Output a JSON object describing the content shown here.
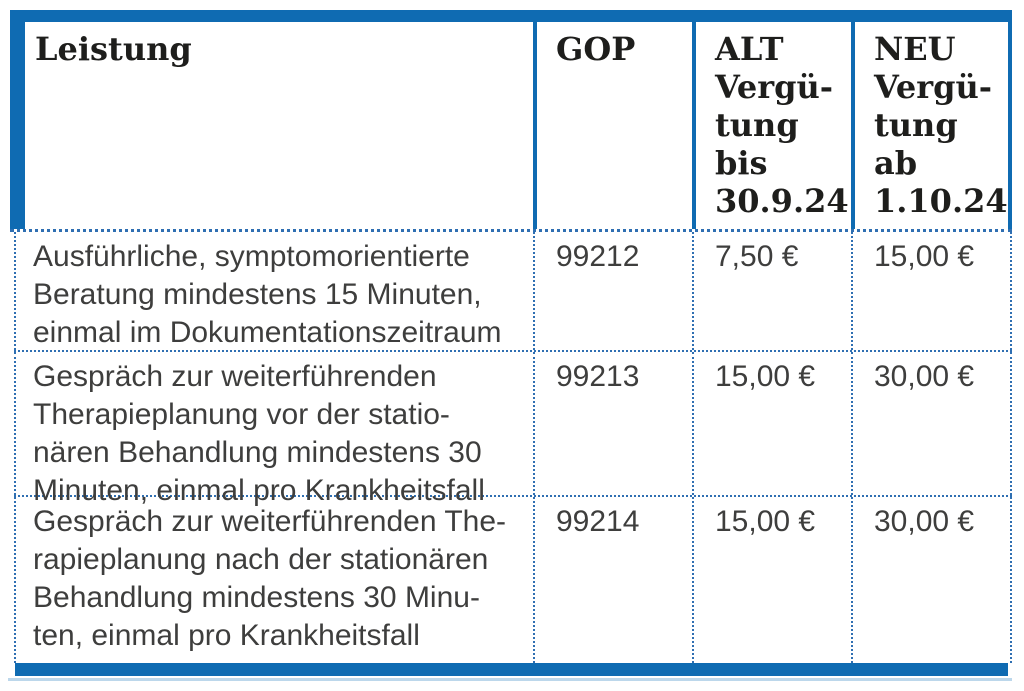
{
  "table": {
    "columns": [
      {
        "label": "Leistung"
      },
      {
        "label": "GOP"
      },
      {
        "label": "ALT\nVergü-\ntung\nbis\n30.9.24"
      },
      {
        "label": "NEU\nVergü-\ntung\nab\n1.10.24"
      }
    ],
    "rows": [
      {
        "leistung": "Ausführliche, symptomorientierte\nBeratung mindestens 15 Minuten,\neinmal im Dokumentationszeitraum",
        "gop": "99212",
        "alt": "7,50 €",
        "neu": "15,00 €"
      },
      {
        "leistung": "Gespräch zur weiterführenden\nTherapieplanung vor der statio-\nnären Behandlung mindestens 30\nMinuten, einmal pro Krankheitsfall",
        "gop": "99213",
        "alt": "15,00 €",
        "neu": "30,00 €"
      },
      {
        "leistung": "Gespräch zur weiterführenden The-\nrapieplanung nach der stationären\nBehandlung mindestens 30 Minu-\nten, einmal pro Krankheitsfall",
        "gop": "99214",
        "alt": "15,00 €",
        "neu": "30,00 €"
      }
    ],
    "colors": {
      "accent_blue": "#0f6bb2",
      "light_blue": "#bcd7eb",
      "body_text": "#3e3e3d",
      "header_text": "#1e1e1c"
    }
  }
}
